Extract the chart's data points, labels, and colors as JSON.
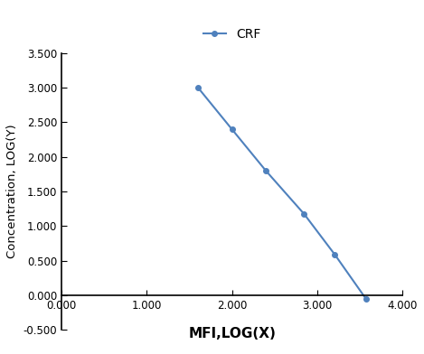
{
  "x": [
    1.602,
    2.0,
    2.398,
    2.845,
    3.204,
    3.568
  ],
  "y": [
    3.0,
    2.398,
    1.799,
    1.176,
    0.591,
    -0.046
  ],
  "line_color": "#4F81BD",
  "marker_color": "#4F81BD",
  "marker_style": "o",
  "marker_size": 4,
  "line_width": 1.5,
  "label": "CRF",
  "xlabel": "MFI,LOG(X)",
  "ylabel": "Concentration, LOG(Y)",
  "xlim": [
    0.0,
    4.0
  ],
  "ylim": [
    -0.5,
    3.5
  ],
  "xticks": [
    0.0,
    1.0,
    2.0,
    3.0,
    4.0
  ],
  "yticks": [
    -0.5,
    0.0,
    0.5,
    1.0,
    1.5,
    2.0,
    2.5,
    3.0,
    3.5
  ],
  "xlabel_fontsize": 11,
  "ylabel_fontsize": 9.5,
  "tick_fontsize": 8.5,
  "legend_fontsize": 10,
  "background_color": "#ffffff"
}
